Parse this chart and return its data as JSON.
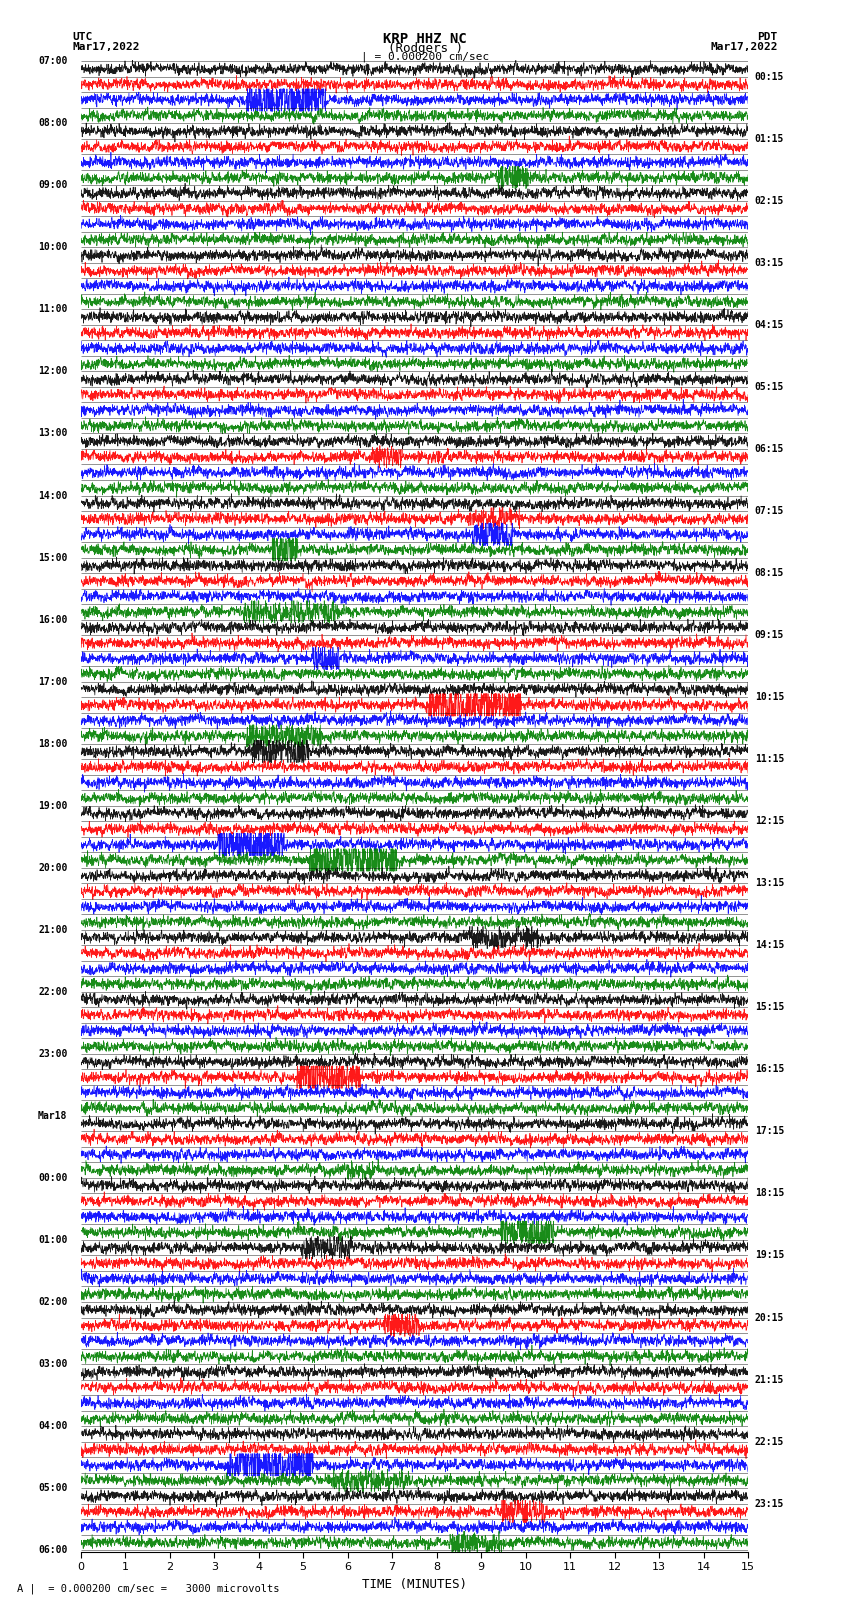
{
  "title_line1": "KRP HHZ NC",
  "title_line2": "(Rodgers )",
  "scale_label": "| = 0.000200 cm/sec",
  "xlabel": "TIME (MINUTES)",
  "left_label": "UTC",
  "left_date": "Mar17,2022",
  "right_label": "PDT",
  "right_date": "Mar17,2022",
  "left_times": [
    "07:00",
    "08:00",
    "09:00",
    "10:00",
    "11:00",
    "12:00",
    "13:00",
    "14:00",
    "15:00",
    "16:00",
    "17:00",
    "18:00",
    "19:00",
    "20:00",
    "21:00",
    "22:00",
    "23:00",
    "Mar18",
    "00:00",
    "01:00",
    "02:00",
    "03:00",
    "04:00",
    "05:00",
    "06:00"
  ],
  "right_times": [
    "00:15",
    "01:15",
    "02:15",
    "03:15",
    "04:15",
    "05:15",
    "06:15",
    "07:15",
    "08:15",
    "09:15",
    "10:15",
    "11:15",
    "12:15",
    "13:15",
    "14:15",
    "15:15",
    "16:15",
    "17:15",
    "18:15",
    "19:15",
    "20:15",
    "21:15",
    "22:15",
    "23:15"
  ],
  "n_rows": 96,
  "minutes_per_row": 15,
  "colors": [
    "black",
    "red",
    "blue",
    "green"
  ],
  "bg_color": "white",
  "figsize": [
    8.5,
    16.13
  ],
  "dpi": 100,
  "rows_per_hour": 4,
  "n_samples": 2700
}
